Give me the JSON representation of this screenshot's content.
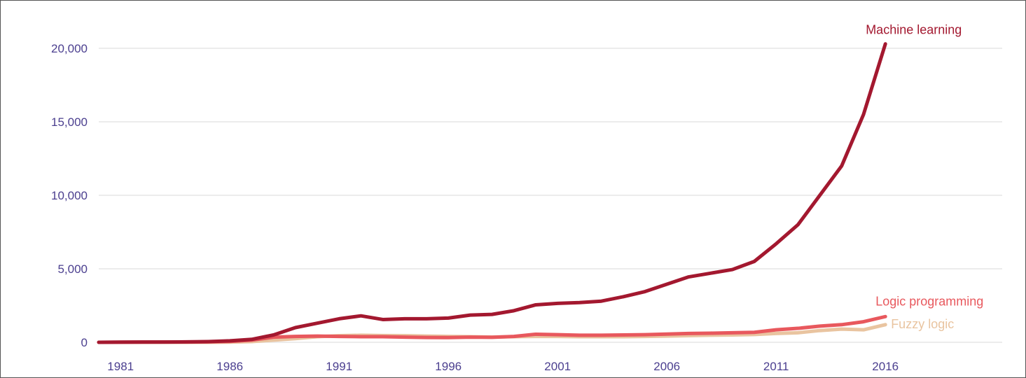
{
  "chart_data": {
    "type": "line",
    "title": "",
    "xlabel": "",
    "ylabel": "",
    "xlim": [
      1980,
      2021
    ],
    "ylim": [
      0,
      20000
    ],
    "grid": true,
    "legend": "direct labels at line ends",
    "x_ticks": [
      "1981",
      "1986",
      "1991",
      "1996",
      "2001",
      "2006",
      "2011",
      "2016"
    ],
    "y_ticks": [
      "0",
      "5,000",
      "10,000",
      "15,000",
      "20,000"
    ],
    "x": [
      1980,
      1981,
      1982,
      1983,
      1984,
      1985,
      1986,
      1987,
      1988,
      1989,
      1990,
      1991,
      1992,
      1993,
      1994,
      1995,
      1996,
      1997,
      1998,
      1999,
      2000,
      2001,
      2002,
      2003,
      2004,
      2005,
      2006,
      2007,
      2008,
      2009,
      2010,
      2011,
      2012,
      2013,
      2014,
      2015,
      2016
    ],
    "series": [
      {
        "name": "Machine learning",
        "color": "#a3182f",
        "values": [
          0,
          10,
          15,
          20,
          30,
          50,
          100,
          200,
          500,
          1000,
          1300,
          1600,
          1800,
          1550,
          1600,
          1600,
          1650,
          1850,
          1900,
          2150,
          2550,
          2650,
          2700,
          2800,
          3100,
          3450,
          3950,
          4450,
          4700,
          4950,
          5500,
          6700,
          8000,
          10000,
          12000,
          15500,
          20300
        ]
      },
      {
        "name": "Logic programming",
        "color": "#e8585d",
        "values": [
          0,
          5,
          10,
          15,
          20,
          30,
          60,
          150,
          350,
          400,
          420,
          400,
          380,
          380,
          350,
          330,
          320,
          350,
          340,
          400,
          550,
          520,
          480,
          480,
          500,
          520,
          560,
          600,
          620,
          650,
          680,
          850,
          950,
          1100,
          1200,
          1400,
          1750
        ]
      },
      {
        "name": "Fuzzy logic",
        "color": "#e9c4a0",
        "values": [
          0,
          0,
          0,
          0,
          0,
          0,
          10,
          50,
          150,
          250,
          380,
          450,
          480,
          460,
          450,
          420,
          400,
          380,
          360,
          380,
          400,
          400,
          380,
          380,
          380,
          400,
          420,
          450,
          480,
          500,
          530,
          600,
          650,
          800,
          900,
          850,
          1200
        ]
      }
    ]
  }
}
